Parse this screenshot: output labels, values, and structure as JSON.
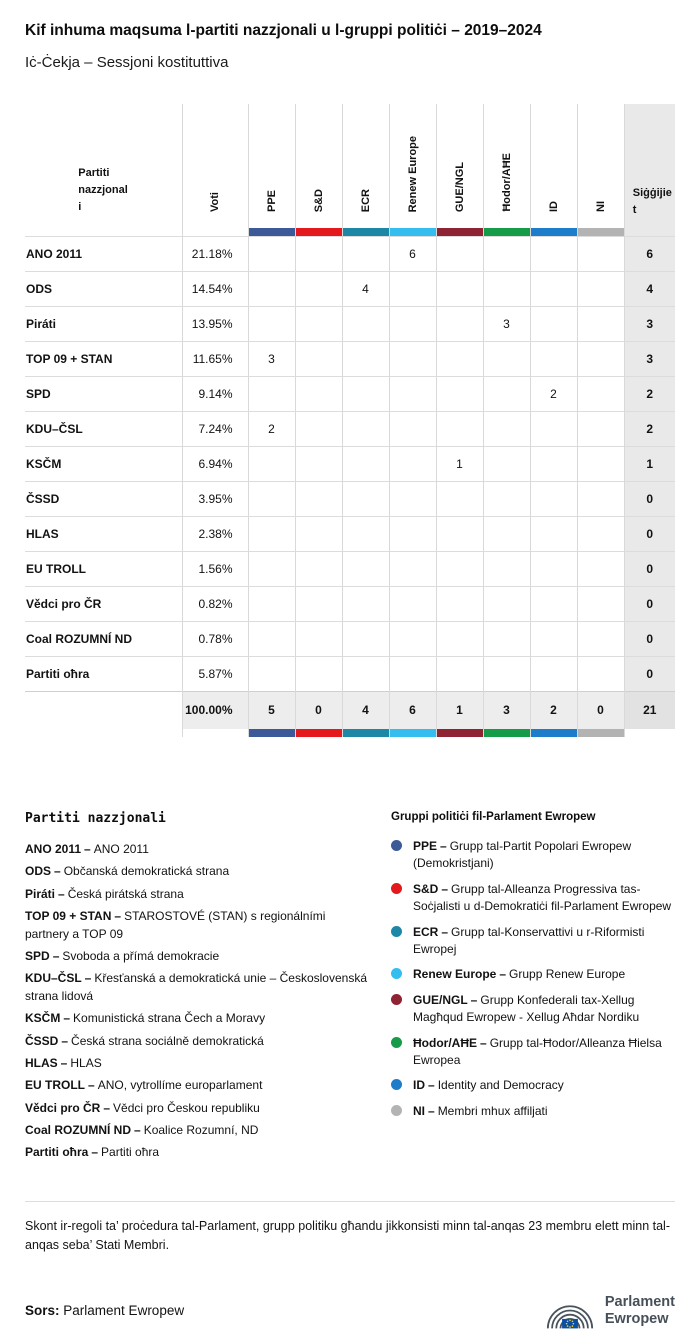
{
  "header": {
    "title": "Kif inhuma maqsuma l-partiti nazzjonali u l-gruppi politiċi – 2019–2024",
    "subtitle": "Iċ-Ċekja – Sessjoni kostituttiva"
  },
  "chart_data": {
    "type": "table",
    "first_col_header": "Partiti nazzjonali",
    "voti_header": "Voti",
    "seats_header": "Siġġijiet",
    "groups": [
      {
        "name": "PPE",
        "color": "#3D5A98"
      },
      {
        "name": "S&D",
        "color": "#E3191E"
      },
      {
        "name": "ECR",
        "color": "#1E87A5"
      },
      {
        "name": "Renew Europe",
        "color": "#35BDEF"
      },
      {
        "name": "GUE/NGL",
        "color": "#8D2333"
      },
      {
        "name": "Ħodor/AĦE",
        "color": "#169C48"
      },
      {
        "name": "ID",
        "color": "#1D7DCB"
      },
      {
        "name": "NI",
        "color": "#B3B3B3"
      }
    ],
    "rows": [
      {
        "party": "ANO 2011",
        "voti": "21.18%",
        "group_seats": [
          "",
          "",
          "",
          "6",
          "",
          "",
          "",
          ""
        ],
        "seats": "6"
      },
      {
        "party": "ODS",
        "voti": "14.54%",
        "group_seats": [
          "",
          "",
          "4",
          "",
          "",
          "",
          "",
          ""
        ],
        "seats": "4"
      },
      {
        "party": "Piráti",
        "voti": "13.95%",
        "group_seats": [
          "",
          "",
          "",
          "",
          "",
          "3",
          "",
          ""
        ],
        "seats": "3"
      },
      {
        "party": "TOP 09 + STAN",
        "voti": "11.65%",
        "group_seats": [
          "3",
          "",
          "",
          "",
          "",
          "",
          "",
          ""
        ],
        "seats": "3"
      },
      {
        "party": "SPD",
        "voti": "9.14%",
        "group_seats": [
          "",
          "",
          "",
          "",
          "",
          "",
          "2",
          ""
        ],
        "seats": "2"
      },
      {
        "party": "KDU–ČSL",
        "voti": "7.24%",
        "group_seats": [
          "2",
          "",
          "",
          "",
          "",
          "",
          "",
          ""
        ],
        "seats": "2"
      },
      {
        "party": "KSČM",
        "voti": "6.94%",
        "group_seats": [
          "",
          "",
          "",
          "",
          "1",
          "",
          "",
          ""
        ],
        "seats": "1"
      },
      {
        "party": "ČSSD",
        "voti": "3.95%",
        "group_seats": [
          "",
          "",
          "",
          "",
          "",
          "",
          "",
          ""
        ],
        "seats": "0"
      },
      {
        "party": "HLAS",
        "voti": "2.38%",
        "group_seats": [
          "",
          "",
          "",
          "",
          "",
          "",
          "",
          ""
        ],
        "seats": "0"
      },
      {
        "party": "EU TROLL",
        "voti": "1.56%",
        "group_seats": [
          "",
          "",
          "",
          "",
          "",
          "",
          "",
          ""
        ],
        "seats": "0"
      },
      {
        "party": "Vědci pro ČR",
        "voti": "0.82%",
        "group_seats": [
          "",
          "",
          "",
          "",
          "",
          "",
          "",
          ""
        ],
        "seats": "0"
      },
      {
        "party": "Coal ROZUMNÍ ND",
        "voti": "0.78%",
        "group_seats": [
          "",
          "",
          "",
          "",
          "",
          "",
          "",
          ""
        ],
        "seats": "0"
      },
      {
        "party": "Partiti oħra",
        "voti": "5.87%",
        "group_seats": [
          "",
          "",
          "",
          "",
          "",
          "",
          "",
          ""
        ],
        "seats": "0"
      }
    ],
    "total_row": {
      "party": "",
      "voti": "100.00%",
      "group_seats": [
        "5",
        "0",
        "4",
        "6",
        "1",
        "3",
        "2",
        "0"
      ],
      "seats": "21"
    }
  },
  "legend_parties": {
    "title": "Partiti nazzjonali",
    "separator": "–",
    "items": [
      {
        "abbr": "ANO 2011",
        "desc": "ANO 2011"
      },
      {
        "abbr": "ODS",
        "desc": "Občanská demokratická strana"
      },
      {
        "abbr": "Piráti",
        "desc": "Česká pirátská strana"
      },
      {
        "abbr": "TOP 09 + STAN",
        "desc": "STAROSTOVÉ (STAN) s regionálními partnery a TOP 09"
      },
      {
        "abbr": "SPD",
        "desc": "Svoboda a přímá demokracie"
      },
      {
        "abbr": "KDU–ČSL",
        "desc": "Křesťanská a demokratická unie – Československá strana lidová"
      },
      {
        "abbr": "KSČM",
        "desc": "Komunistická strana Čech a Moravy"
      },
      {
        "abbr": "ČSSD",
        "desc": "Česká strana sociálně demokratická"
      },
      {
        "abbr": "HLAS",
        "desc": "HLAS"
      },
      {
        "abbr": "EU TROLL",
        "desc": "ANO, vytrollíme europarlament"
      },
      {
        "abbr": "Vědci pro ČR",
        "desc": "Vědci pro Českou republiku"
      },
      {
        "abbr": "Coal ROZUMNÍ ND",
        "desc": "Koalice Rozumní, ND"
      },
      {
        "abbr": "Partiti oħra",
        "desc": "Partiti oħra"
      }
    ]
  },
  "legend_groups": {
    "title": "Gruppi politiċi fil-Parlament Ewropew",
    "separator": "–",
    "items": [
      {
        "abbr": "PPE",
        "desc": "Grupp tal-Partit Popolari Ewropew (Demokristjani)"
      },
      {
        "abbr": "S&D",
        "desc": "Grupp tal-Alleanza Progressiva tas-Soċjalisti u d-Demokratiċi fil-Parlament Ewropew"
      },
      {
        "abbr": "ECR",
        "desc": "Grupp tal-Konservattivi u r-Riformisti Ewropej"
      },
      {
        "abbr": "Renew Europe",
        "desc": "Grupp Renew Europe"
      },
      {
        "abbr": "GUE/NGL",
        "desc": "Grupp Konfederali tax-Xellug Magħqud Ewropew - Xellug Aħdar Nordiku"
      },
      {
        "abbr": "Ħodor/AĦE",
        "desc": "Grupp tal-Ħodor/Alleanza Ħielsa Ewropea"
      },
      {
        "abbr": "ID",
        "desc": "Identity and Democracy"
      },
      {
        "abbr": "NI",
        "desc": "Membri mhux affiljati"
      }
    ]
  },
  "footer": {
    "note": "Skont ir-regoli ta’ proċedura tal-Parlament, grupp politiku għandu jikkonsisti minn tal-anqas 23 membru elett minn tal-anqas seba’ Stati Membri.",
    "source_label": "Sors:",
    "source_value": "Parlament Ewropew",
    "logo_line1": "Parlament",
    "logo_line2": "Ewropew"
  }
}
